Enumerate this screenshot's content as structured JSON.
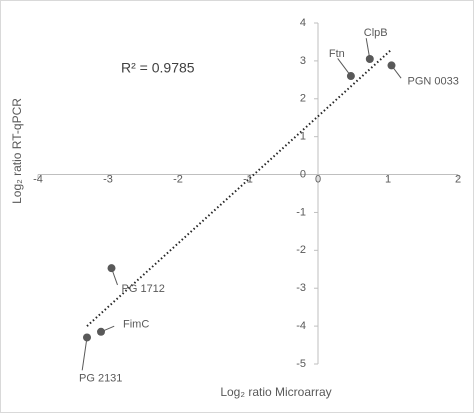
{
  "chart_data": {
    "type": "scatter",
    "annotation": "R² = 0.9785",
    "x_label": "Log₂ ratio Microarray",
    "y_label": "Log₂ ratio RT-qPCR",
    "series": [
      {
        "color": "#595959",
        "x": [
          0.74,
          0.47,
          1.05,
          -2.95,
          -3.1,
          -3.3
        ],
        "values": [
          3.05,
          2.6,
          2.88,
          -2.47,
          -4.15,
          -4.3
        ],
        "labels": [
          "ClpB",
          "Ftn",
          "PGN 0033",
          "PG 1712",
          "FimC",
          "PG 2131"
        ]
      }
    ],
    "trendline": {
      "x": [
        -3.3,
        1.05
      ],
      "values": [
        -4.0,
        3.3
      ]
    },
    "xlim": [
      -4,
      2
    ],
    "ylim": [
      -5,
      4
    ],
    "xticks": [
      -4,
      -3,
      -2,
      -1,
      0,
      1,
      2
    ],
    "yticks": [
      -5,
      -4,
      -3,
      -2,
      -1,
      0,
      1,
      2,
      3,
      4
    ]
  }
}
